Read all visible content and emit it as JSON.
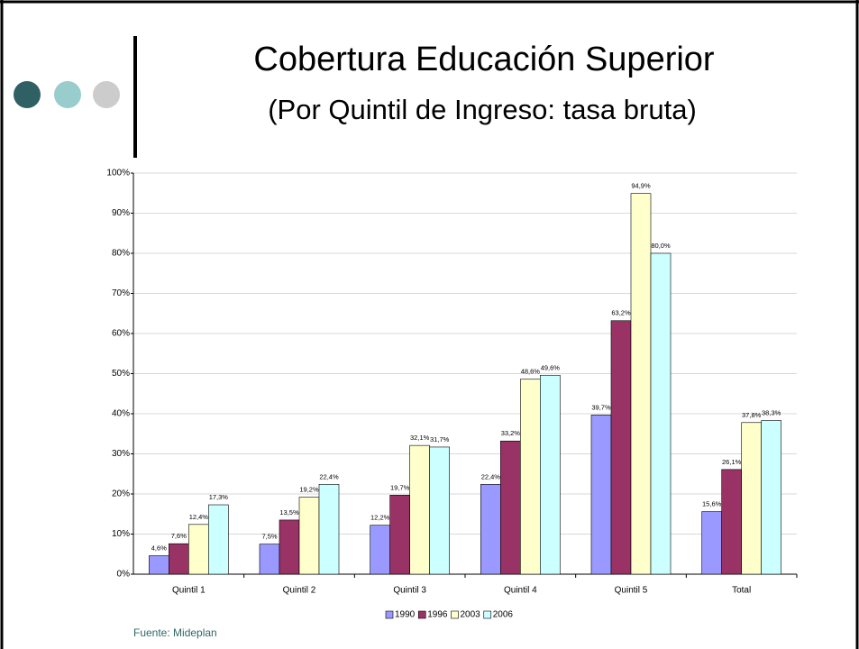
{
  "title": "Cobertura Educación Superior",
  "subtitle": "(Por Quintil de Ingreso: tasa bruta)",
  "source": "Fuente: Mideplan",
  "chart_data": {
    "type": "bar",
    "categories": [
      "Quintil 1",
      "Quintil 2",
      "Quintil 3",
      "Quintil 4",
      "Quintil 5",
      "Total"
    ],
    "series": [
      {
        "name": "1990",
        "color": "#9999ff",
        "values": [
          4.6,
          7.5,
          12.2,
          22.4,
          39.7,
          15.6
        ],
        "value_labels": [
          "4,6%",
          "7,5%",
          "12,2%",
          "22,4%",
          "39,7%",
          "15,6%"
        ]
      },
      {
        "name": "1996",
        "color": "#993366",
        "values": [
          7.6,
          13.5,
          19.7,
          33.2,
          63.2,
          26.1
        ],
        "value_labels": [
          "7,6%",
          "13,5%",
          "19,7%",
          "33,2%",
          "63,2%",
          "26,1%"
        ]
      },
      {
        "name": "2003",
        "color": "#ffffcc",
        "values": [
          12.4,
          19.2,
          32.1,
          48.6,
          94.9,
          37.8
        ],
        "value_labels": [
          "12,4%",
          "19,2%",
          "32,1%",
          "48,6%",
          "94,9%",
          "37,8%"
        ]
      },
      {
        "name": "2006",
        "color": "#ccffff",
        "values": [
          17.3,
          22.4,
          31.7,
          49.6,
          80.0,
          38.3
        ],
        "value_labels": [
          "17,3%",
          "22,4%",
          "31,7%",
          "49,6%",
          "80,0%",
          "38,3%"
        ]
      }
    ],
    "ylim": [
      0,
      100
    ],
    "yticks": [
      {
        "value": 0,
        "label": "0%"
      },
      {
        "value": 10,
        "label": "10%"
      },
      {
        "value": 20,
        "label": "20%"
      },
      {
        "value": 30,
        "label": "30%"
      },
      {
        "value": 40,
        "label": "40%"
      },
      {
        "value": 50,
        "label": "50%"
      },
      {
        "value": 60,
        "label": "60%"
      },
      {
        "value": 70,
        "label": "70%"
      },
      {
        "value": 80,
        "label": "80%"
      },
      {
        "value": 90,
        "label": "90%"
      },
      {
        "value": 100,
        "label": "100%"
      }
    ],
    "grid": true,
    "legend": "bottom"
  }
}
